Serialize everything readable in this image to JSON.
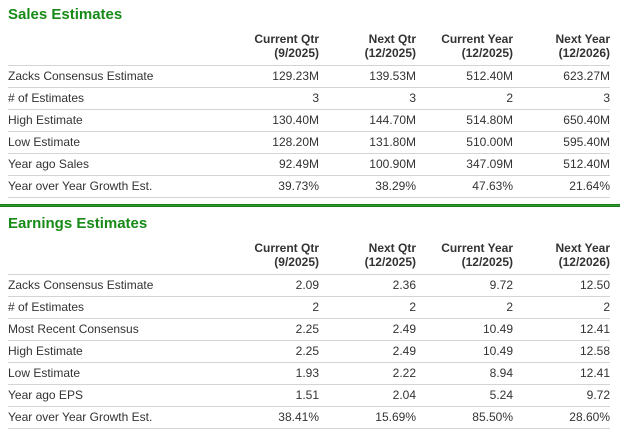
{
  "colors": {
    "title_green": "#178a17",
    "divider_green": "#2e9b2e",
    "divider_edge_green": "#1a7a1a",
    "row_border_gray": "#d4d4d4",
    "text_color": "#333333"
  },
  "sales": {
    "title": "Sales Estimates",
    "columns": [
      {
        "label": "Current Qtr",
        "period": "(9/2025)"
      },
      {
        "label": "Next Qtr",
        "period": "(12/2025)"
      },
      {
        "label": "Current Year",
        "period": "(12/2025)"
      },
      {
        "label": "Next Year",
        "period": "(12/2026)"
      }
    ],
    "rows": [
      {
        "label": "Zacks Consensus Estimate",
        "values": [
          "129.23M",
          "139.53M",
          "512.40M",
          "623.27M"
        ]
      },
      {
        "label": "# of Estimates",
        "values": [
          "3",
          "3",
          "2",
          "3"
        ]
      },
      {
        "label": "High Estimate",
        "values": [
          "130.40M",
          "144.70M",
          "514.80M",
          "650.40M"
        ]
      },
      {
        "label": "Low Estimate",
        "values": [
          "128.20M",
          "131.80M",
          "510.00M",
          "595.40M"
        ]
      },
      {
        "label": "Year ago Sales",
        "values": [
          "92.49M",
          "100.90M",
          "347.09M",
          "512.40M"
        ]
      },
      {
        "label": "Year over Year Growth Est.",
        "values": [
          "39.73%",
          "38.29%",
          "47.63%",
          "21.64%"
        ]
      }
    ]
  },
  "earnings": {
    "title": "Earnings Estimates",
    "columns": [
      {
        "label": "Current Qtr",
        "period": "(9/2025)"
      },
      {
        "label": "Next Qtr",
        "period": "(12/2025)"
      },
      {
        "label": "Current Year",
        "period": "(12/2025)"
      },
      {
        "label": "Next Year",
        "period": "(12/2026)"
      }
    ],
    "rows": [
      {
        "label": "Zacks Consensus Estimate",
        "values": [
          "2.09",
          "2.36",
          "9.72",
          "12.50"
        ]
      },
      {
        "label": "# of Estimates",
        "values": [
          "2",
          "2",
          "2",
          "2"
        ]
      },
      {
        "label": "Most Recent Consensus",
        "values": [
          "2.25",
          "2.49",
          "10.49",
          "12.41"
        ]
      },
      {
        "label": "High Estimate",
        "values": [
          "2.25",
          "2.49",
          "10.49",
          "12.58"
        ]
      },
      {
        "label": "Low Estimate",
        "values": [
          "1.93",
          "2.22",
          "8.94",
          "12.41"
        ]
      },
      {
        "label": "Year ago EPS",
        "values": [
          "1.51",
          "2.04",
          "5.24",
          "9.72"
        ]
      },
      {
        "label": "Year over Year Growth Est.",
        "values": [
          "38.41%",
          "15.69%",
          "85.50%",
          "28.60%"
        ]
      }
    ]
  }
}
